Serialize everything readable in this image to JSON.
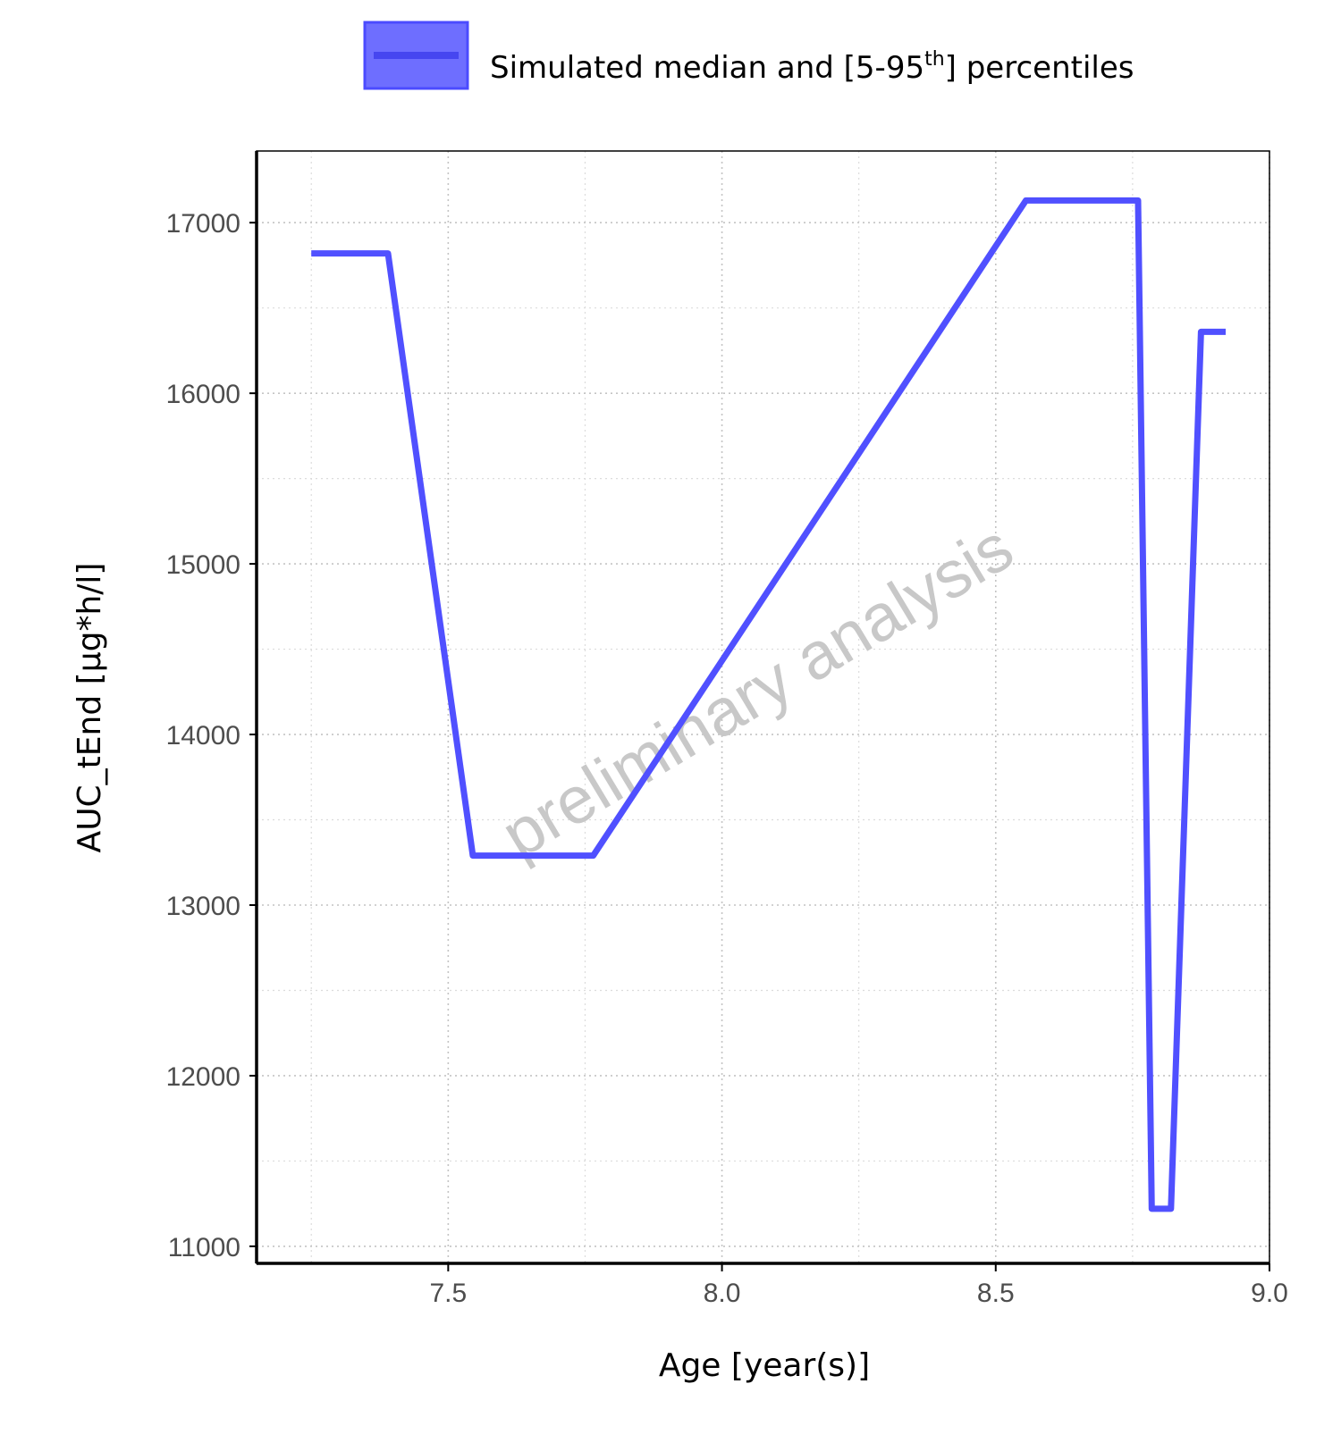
{
  "chart_data": {
    "type": "line",
    "xlabel": "Age [year(s)]",
    "ylabel": "AUC_tEnd [µg*h/l]",
    "xlim": [
      7.15,
      9.0
    ],
    "ylim": [
      10900,
      17420
    ],
    "x_ticks": [
      "7.5",
      "8.0",
      "8.5",
      "9.0"
    ],
    "x_tick_values": [
      7.5,
      8.0,
      8.5,
      9.0
    ],
    "y_ticks": [
      "11000",
      "12000",
      "13000",
      "14000",
      "15000",
      "16000",
      "17000"
    ],
    "y_tick_values": [
      11000,
      12000,
      13000,
      14000,
      15000,
      16000,
      17000
    ],
    "grid": true,
    "legend": {
      "position": "top",
      "label_main": "Simulated median and [5-95",
      "label_sup": "th",
      "label_end": "] percentiles"
    },
    "watermark": "preliminary analysis",
    "series": [
      {
        "name": "Simulated median and [5-95th] percentiles",
        "color": "#5050ff",
        "x": [
          7.25,
          7.39,
          7.545,
          7.765,
          8.555,
          8.76,
          8.785,
          8.82,
          8.875,
          8.92
        ],
        "y": [
          16820,
          16820,
          13290,
          13290,
          17130,
          17130,
          11220,
          11220,
          16360,
          16360
        ]
      }
    ]
  }
}
